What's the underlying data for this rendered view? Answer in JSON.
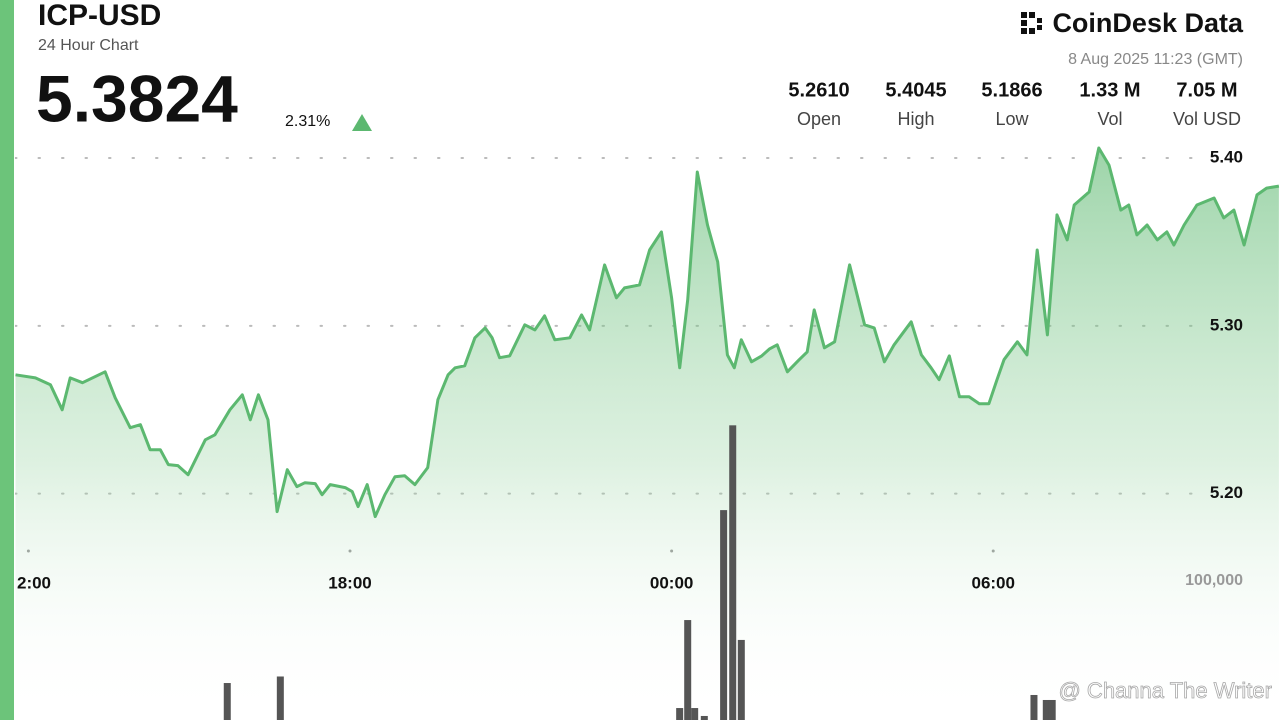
{
  "header": {
    "title": "ICP-USD",
    "subtitle": "24 Hour Chart",
    "price": "5.3824",
    "change": "2.31%",
    "brand": "CoinDesk Data",
    "timestamp": "8 Aug 2025 11:23 (GMT)",
    "watermark": "@ Channa The Writer",
    "stats": [
      {
        "value": "5.2610",
        "label": "Open"
      },
      {
        "value": "5.4045",
        "label": "High"
      },
      {
        "value": "5.1866",
        "label": "Low"
      },
      {
        "value": "1.33 M",
        "label": "Vol"
      },
      {
        "value": "7.05 M",
        "label": "Vol USD"
      }
    ]
  },
  "chart_data": {
    "type": "area",
    "xlim": [
      -0.25,
      23.35
    ],
    "xticks": [
      {
        "value": 0,
        "label": "2:00"
      },
      {
        "value": 6,
        "label": "18:00"
      },
      {
        "value": 12,
        "label": "00:00"
      },
      {
        "value": 18,
        "label": "06:00"
      }
    ],
    "ylim": [
      5.17,
      5.49
    ],
    "yticks": [
      {
        "value": 5.2,
        "label": "5.20"
      },
      {
        "value": 5.3,
        "label": "5.30"
      },
      {
        "value": 5.4,
        "label": "5.40"
      }
    ],
    "y2lim": [
      0,
      500000
    ],
    "y2ticks": [
      {
        "value": 100000,
        "label": "100,000"
      }
    ],
    "grid": true,
    "series": [
      {
        "color": "#5cb870",
        "x": [
          -0.24,
          0.13,
          0.41,
          0.63,
          0.78,
          1.01,
          1.43,
          1.62,
          1.9,
          2.09,
          2.27,
          2.46,
          2.61,
          2.79,
          2.98,
          3.3,
          3.48,
          3.76,
          3.99,
          4.14,
          4.29,
          4.47,
          4.64,
          4.83,
          5.01,
          5.16,
          5.35,
          5.48,
          5.63,
          5.91,
          6.04,
          6.15,
          6.32,
          6.47,
          6.65,
          6.84,
          7.02,
          7.21,
          7.45,
          7.64,
          7.83,
          7.96,
          8.14,
          8.33,
          8.52,
          8.65,
          8.79,
          8.98,
          9.26,
          9.45,
          9.63,
          9.82,
          10.1,
          10.32,
          10.47,
          10.75,
          10.97,
          11.12,
          11.4,
          11.59,
          11.81,
          12.0,
          12.15,
          12.3,
          12.48,
          12.67,
          12.86,
          13.04,
          13.17,
          13.3,
          13.49,
          13.68,
          13.83,
          13.97,
          14.16,
          14.38,
          14.53,
          14.66,
          14.85,
          15.04,
          15.32,
          15.6,
          15.78,
          15.97,
          16.15,
          16.47,
          16.66,
          16.84,
          16.99,
          17.18,
          17.37,
          17.55,
          17.74,
          17.92,
          18.07,
          18.2,
          18.45,
          18.63,
          18.82,
          19.01,
          19.19,
          19.38,
          19.51,
          19.79,
          19.97,
          20.16,
          20.38,
          20.53,
          20.68,
          20.87,
          21.06,
          21.24,
          21.37,
          21.56,
          21.8,
          22.12,
          22.3,
          22.49,
          22.68,
          22.92,
          23.1,
          23.33
        ],
        "values": [
          5.2708,
          5.269,
          5.2649,
          5.25,
          5.269,
          5.2661,
          5.2726,
          5.2571,
          5.2393,
          5.2411,
          5.2262,
          5.2262,
          5.2173,
          5.2167,
          5.2113,
          5.2321,
          5.2351,
          5.25,
          5.2589,
          5.244,
          5.2589,
          5.244,
          5.1893,
          5.2143,
          5.2042,
          5.2065,
          5.206,
          5.1994,
          5.2054,
          5.2036,
          5.2012,
          5.1923,
          5.2054,
          5.1863,
          5.1994,
          5.2101,
          5.2107,
          5.2054,
          5.2155,
          5.256,
          5.2708,
          5.275,
          5.2762,
          5.2929,
          5.2988,
          5.2929,
          5.281,
          5.2821,
          5.3006,
          5.2976,
          5.306,
          5.2917,
          5.2929,
          5.3065,
          5.2976,
          5.3363,
          5.3167,
          5.3226,
          5.3244,
          5.3452,
          5.356,
          5.3167,
          5.275,
          5.3155,
          5.3917,
          5.3601,
          5.3381,
          5.2827,
          5.275,
          5.2917,
          5.2786,
          5.2821,
          5.2863,
          5.2887,
          5.2726,
          5.2798,
          5.2845,
          5.3095,
          5.2869,
          5.2905,
          5.3363,
          5.3006,
          5.2988,
          5.2786,
          5.2887,
          5.3024,
          5.2827,
          5.275,
          5.2679,
          5.2821,
          5.2577,
          5.2577,
          5.2536,
          5.2536,
          5.2679,
          5.2798,
          5.2905,
          5.2827,
          5.3452,
          5.2946,
          5.3661,
          5.3512,
          5.372,
          5.3798,
          5.406,
          5.3958,
          5.369,
          5.372,
          5.3542,
          5.3601,
          5.3512,
          5.356,
          5.3482,
          5.3601,
          5.372,
          5.3762,
          5.3643,
          5.369,
          5.3482,
          5.378,
          5.3821,
          5.3833
        ]
      },
      {
        "type": "bar",
        "axis": "y2",
        "color": "#555555",
        "x": [
          3.71,
          4.7,
          12.15,
          12.3,
          12.43,
          12.61,
          12.97,
          13.14,
          13.3,
          18.76,
          18.99,
          19.1
        ],
        "values": [
          26600,
          31300,
          8600,
          71900,
          8600,
          2900,
          151000,
          212000,
          57600,
          18000,
          14400,
          14400
        ]
      }
    ]
  }
}
